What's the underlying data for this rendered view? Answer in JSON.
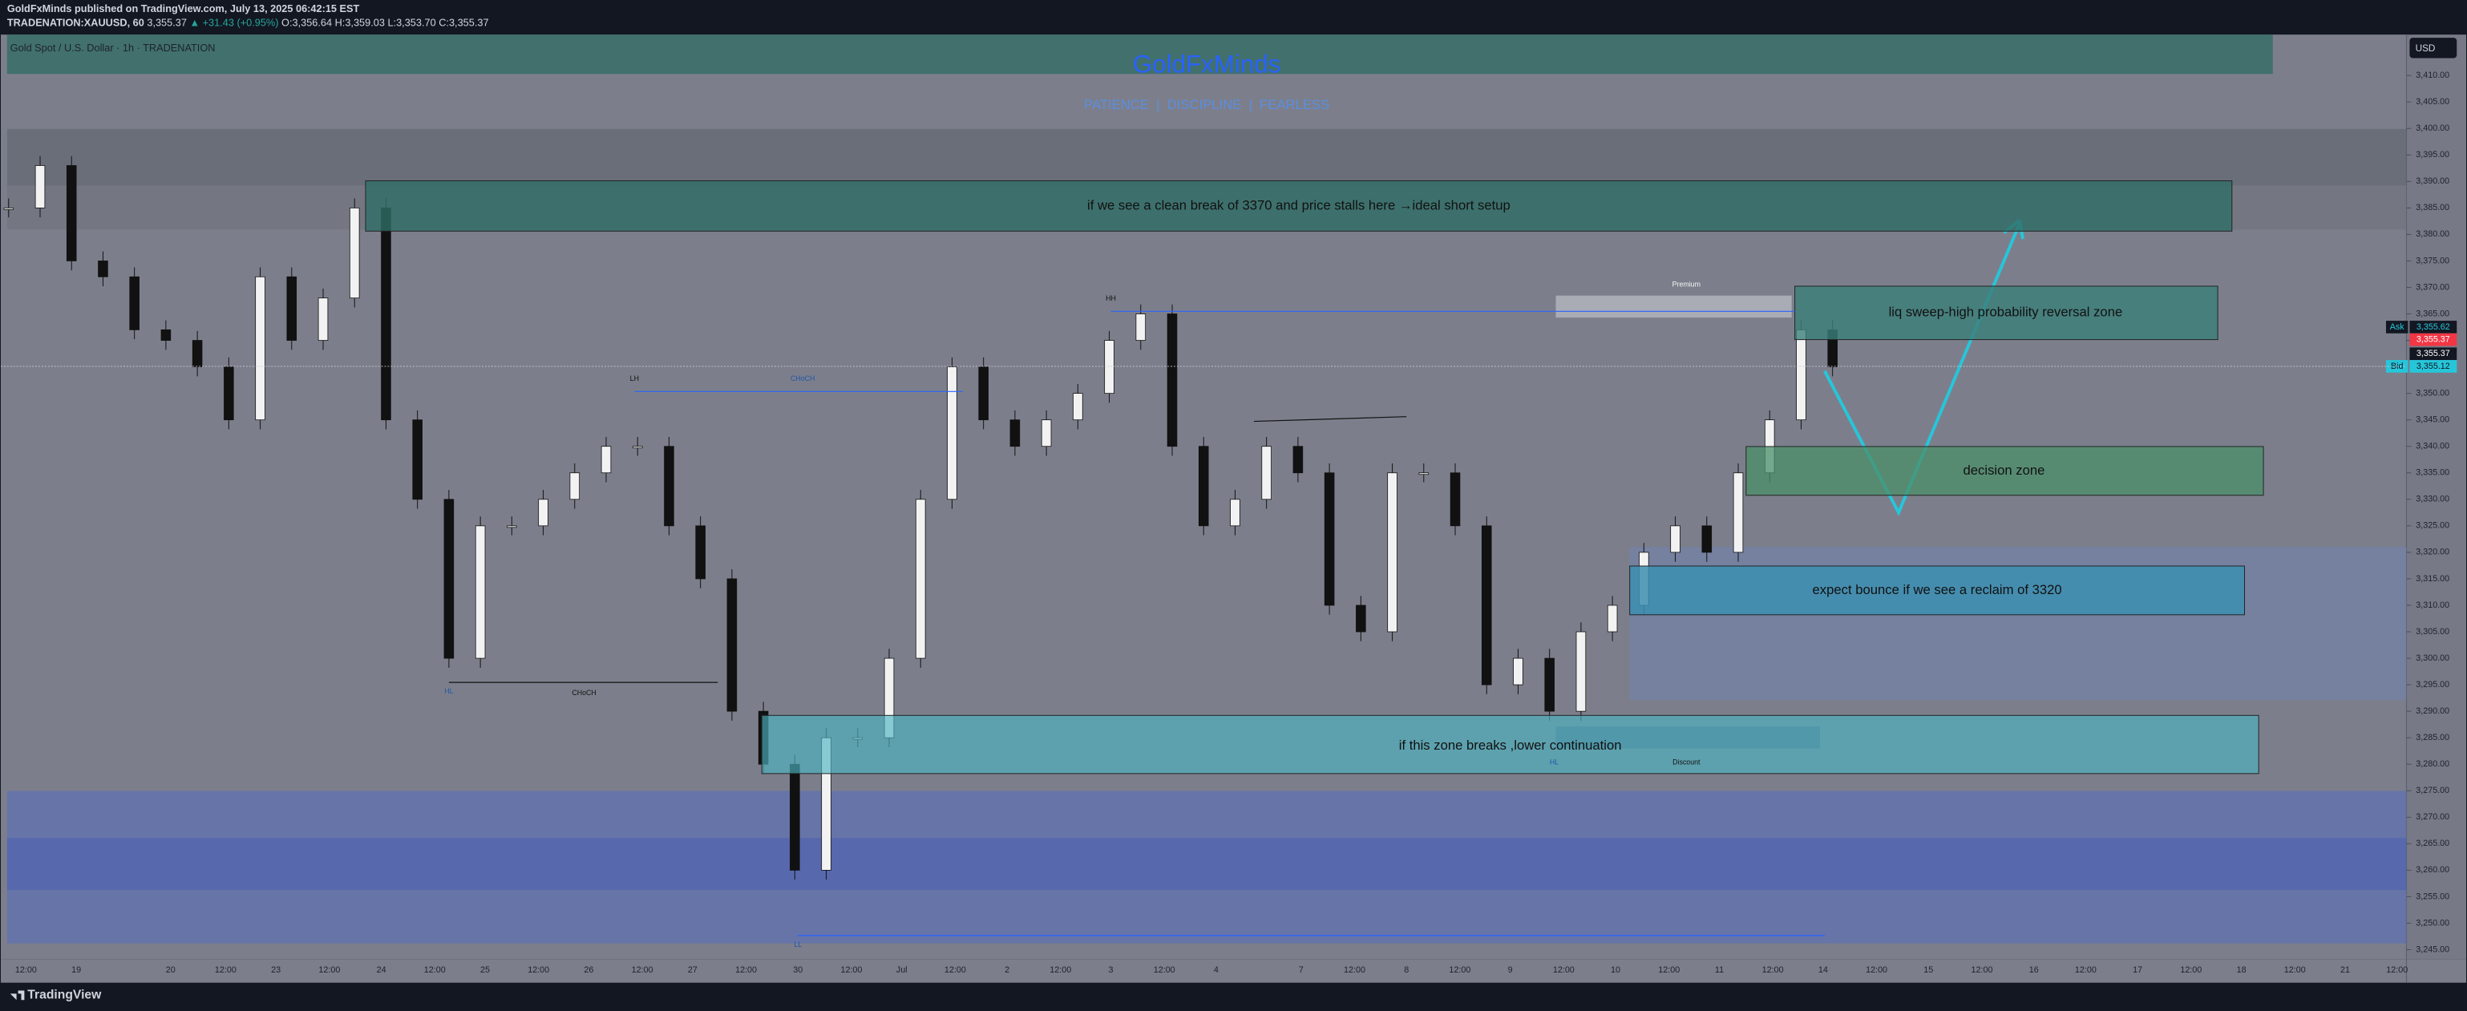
{
  "header": {
    "published": "GoldFxMinds published on TradingView.com, July 13, 2025 06:42:15 EST",
    "symbol": "TRADENATION:XAUUSD, 60",
    "last": "3,355.37",
    "change": "▲ +31.43 (+0.95%)",
    "open": "O:3,356.64",
    "high": "H:3,359.03",
    "low": "L:3,353.70",
    "close": "C:3,355.37"
  },
  "chart": {
    "legend": "Gold Spot / U.S. Dollar · 1h · TRADENATION",
    "title": "GoldFxMinds",
    "subtitle": "PATIENCE  |  DISCIPLINE  |  FEARLESS",
    "currency": "USD",
    "price_ticks": [
      {
        "value": 3410,
        "label": "3,410.00"
      },
      {
        "value": 3405,
        "label": "3,405.00"
      },
      {
        "value": 3400,
        "label": "3,400.00"
      },
      {
        "value": 3395,
        "label": "3,395.00"
      },
      {
        "value": 3390,
        "label": "3,390.00"
      },
      {
        "value": 3385,
        "label": "3,385.00"
      },
      {
        "value": 3380,
        "label": "3,380.00"
      },
      {
        "value": 3375,
        "label": "3,375.00"
      },
      {
        "value": 3370,
        "label": "3,370.00"
      },
      {
        "value": 3365,
        "label": "3,365.00"
      },
      {
        "value": 3360,
        "label": "3,360.00"
      },
      {
        "value": 3350,
        "label": "3,350.00"
      },
      {
        "value": 3345,
        "label": "3,345.00"
      },
      {
        "value": 3340,
        "label": "3,340.00"
      },
      {
        "value": 3335,
        "label": "3,335.00"
      },
      {
        "value": 3330,
        "label": "3,330.00"
      },
      {
        "value": 3325,
        "label": "3,325.00"
      },
      {
        "value": 3320,
        "label": "3,320.00"
      },
      {
        "value": 3315,
        "label": "3,315.00"
      },
      {
        "value": 3310,
        "label": "3,310.00"
      },
      {
        "value": 3305,
        "label": "3,305.00"
      },
      {
        "value": 3300,
        "label": "3,300.00"
      },
      {
        "value": 3295,
        "label": "3,295.00"
      },
      {
        "value": 3290,
        "label": "3,290.00"
      },
      {
        "value": 3285,
        "label": "3,285.00"
      },
      {
        "value": 3280,
        "label": "3,280.00"
      },
      {
        "value": 3275,
        "label": "3,275.00"
      },
      {
        "value": 3270,
        "label": "3,270.00"
      },
      {
        "value": 3265,
        "label": "3,265.00"
      },
      {
        "value": 3260,
        "label": "3,260.00"
      },
      {
        "value": 3255,
        "label": "3,255.00"
      },
      {
        "value": 3250,
        "label": "3,250.00"
      },
      {
        "value": 3245,
        "label": "3,245.00"
      }
    ],
    "time_labels": [
      "12:00",
      "19",
      "20",
      "12:00",
      "23",
      "12:00",
      "24",
      "12:00",
      "25",
      "12:00",
      "26",
      "12:00",
      "27",
      "12:00",
      "30",
      "12:00",
      "Jul",
      "12:00",
      "2",
      "12:00",
      "3",
      "12:00",
      "4",
      "7",
      "12:00",
      "8",
      "12:00",
      "9",
      "12:00",
      "10",
      "12:00",
      "11",
      "12:00",
      "14",
      "12:00",
      "15",
      "12:00",
      "16",
      "12:00",
      "17",
      "12:00",
      "18",
      "12:00",
      "21",
      "12:00"
    ],
    "prices": [
      3385,
      3393,
      3375,
      3372,
      3362,
      3360,
      3355,
      3345,
      3372,
      3360,
      3368,
      3385,
      3345,
      3330,
      3300,
      3325,
      3325,
      3330,
      3335,
      3340,
      3340,
      3325,
      3315,
      3290,
      3280,
      3260,
      3285,
      3285,
      3300,
      3330,
      3355,
      3345,
      3340,
      3345,
      3350,
      3360,
      3365,
      3340,
      3325,
      3330,
      3340,
      3335,
      3310,
      3305,
      3335,
      3335,
      3325,
      3295,
      3300,
      3290,
      3305,
      3310,
      3320,
      3325,
      3320,
      3335,
      3345,
      3362,
      3355
    ],
    "zones": [
      "if we see a clean break of 3370 and price stalls here →ideal short setup",
      "liq sweep-high probability reversal zone",
      "decision zone",
      "expect bounce if we see a reclaim of 3320",
      "if this zone breaks ,lower continuation"
    ],
    "annotations": [
      "HH",
      "LH",
      "CHoCH",
      "HL",
      "CHoCH",
      "Premium",
      "Discount",
      "HL",
      "LL"
    ],
    "price_tags": [
      {
        "tag": "Ask",
        "label": "3,355.62"
      },
      {
        "label": "3,355.37"
      },
      {
        "label": "3,355.37"
      },
      {
        "tag": "Bid",
        "label": "3,355.12"
      }
    ]
  },
  "footer": {
    "brand": "TradingView"
  }
}
